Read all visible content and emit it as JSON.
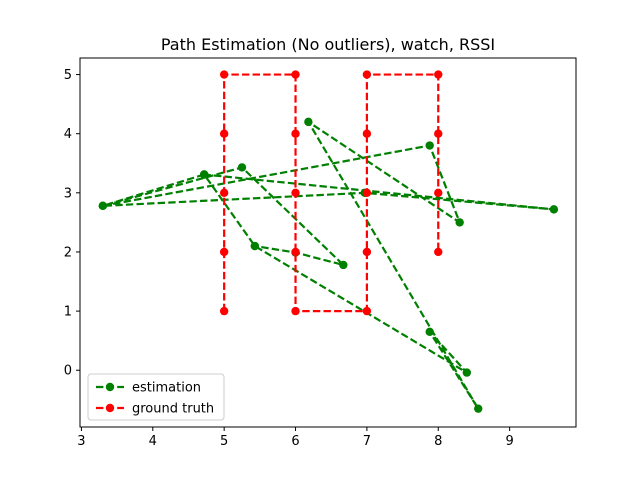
{
  "chart_data": {
    "type": "line",
    "title": "Path Estimation (No outliers), watch, RSSI",
    "xlabel": "",
    "ylabel": "",
    "xlim": [
      2.98,
      9.93
    ],
    "ylim": [
      -0.96,
      5.28
    ],
    "xticks": [
      3,
      4,
      5,
      6,
      7,
      8,
      9
    ],
    "yticks": [
      0,
      1,
      2,
      3,
      4,
      5
    ],
    "grid": false,
    "legend_position": "lower-left",
    "series": [
      {
        "name": "estimation",
        "color": "#008000",
        "linestyle": "dashed",
        "marker": "circle",
        "points": [
          [
            4.72,
            3.31
          ],
          [
            3.3,
            2.78
          ],
          [
            7.88,
            3.8
          ],
          [
            8.3,
            2.5
          ],
          [
            6.18,
            4.2
          ],
          [
            8.56,
            -0.65
          ],
          [
            7.88,
            0.65
          ],
          [
            8.4,
            -0.04
          ],
          [
            5.43,
            2.1
          ],
          [
            4.72,
            3.31
          ],
          [
            9.62,
            2.72
          ],
          [
            6.97,
            3.0
          ],
          [
            3.3,
            2.78
          ],
          [
            5.25,
            3.43
          ],
          [
            6.67,
            1.78
          ],
          [
            6.0,
            1.99
          ],
          [
            5.43,
            2.1
          ]
        ]
      },
      {
        "name": "ground truth",
        "color": "#ff0000",
        "linestyle": "dashed",
        "marker": "circle",
        "points": [
          [
            5,
            1
          ],
          [
            5,
            2
          ],
          [
            5,
            3
          ],
          [
            5,
            4
          ],
          [
            5,
            5
          ],
          [
            6,
            5
          ],
          [
            6,
            4
          ],
          [
            6,
            3
          ],
          [
            6,
            2
          ],
          [
            6,
            1
          ],
          [
            7,
            1
          ],
          [
            7,
            2
          ],
          [
            7,
            3
          ],
          [
            7,
            4
          ],
          [
            7,
            5
          ],
          [
            8,
            5
          ],
          [
            8,
            4
          ],
          [
            8,
            3
          ],
          [
            8,
            2
          ]
        ]
      }
    ]
  }
}
